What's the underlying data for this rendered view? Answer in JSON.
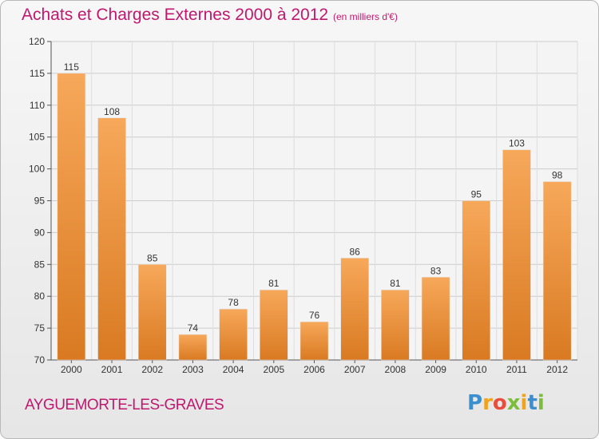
{
  "header": {
    "title": "Achats et Charges Externes 2000 à 2012",
    "subtitle": "(en milliers d'€)"
  },
  "footer": {
    "commune": "AYGUEMORTE-LES-GRAVES",
    "logo_letters": [
      "P",
      "r",
      "o",
      "x",
      "i",
      "t",
      "i"
    ],
    "logo_colors": [
      "#3a8fd1",
      "#f0a31c",
      "#e94b3c",
      "#7cbd3b",
      "#f0a31c",
      "#3a8fd1",
      "#7cbd3b"
    ]
  },
  "colors": {
    "bar_light": "#f7a85a",
    "bar_dark": "#d97a22",
    "text_accent": "#c0186e"
  },
  "chart_data": {
    "type": "bar",
    "title": "Achats et Charges Externes 2000 à 2012",
    "subtitle": "(en milliers d'€)",
    "categories": [
      "2000",
      "2001",
      "2002",
      "2003",
      "2004",
      "2005",
      "2006",
      "2007",
      "2008",
      "2009",
      "2010",
      "2011",
      "2012"
    ],
    "values": [
      115,
      108,
      85,
      74,
      78,
      81,
      76,
      86,
      81,
      83,
      95,
      103,
      98
    ],
    "ylim": [
      70,
      120
    ],
    "yticks": [
      70,
      75,
      80,
      85,
      90,
      95,
      100,
      105,
      110,
      115,
      120
    ],
    "grid": true,
    "legend": "none"
  }
}
